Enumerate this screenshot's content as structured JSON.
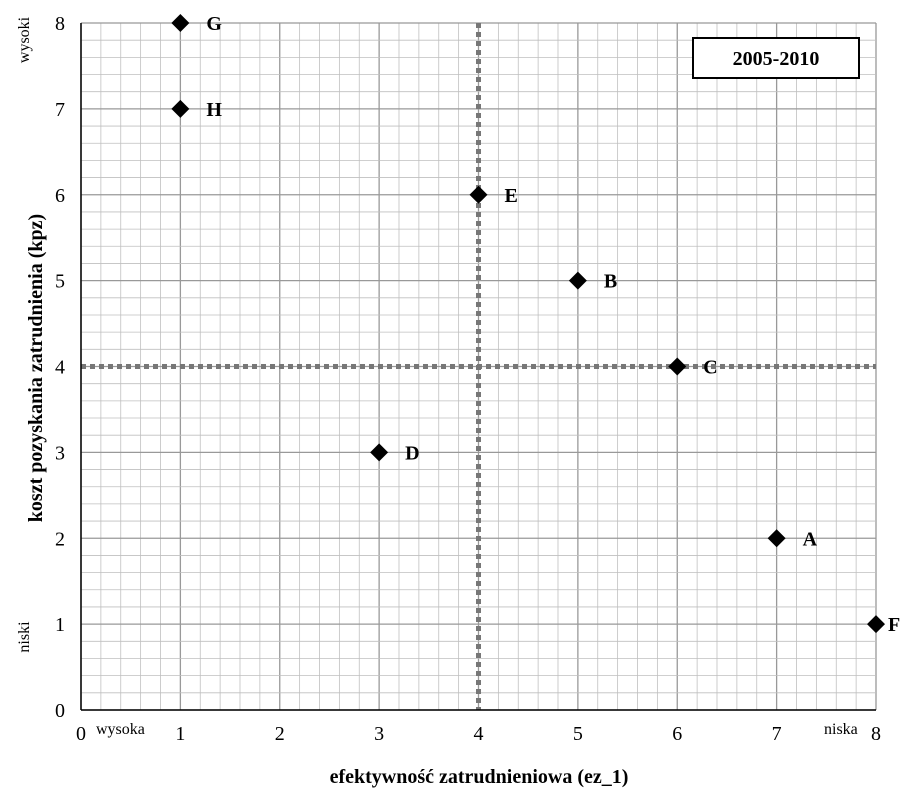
{
  "chart_data": {
    "type": "scatter",
    "period_label": "2005-2010",
    "xlabel": "efektywność zatrudnieniowa (ez_1)",
    "ylabel": "koszt pozyskania zatrudnienia (kpz)",
    "xlim": [
      0,
      8
    ],
    "ylim": [
      0,
      8
    ],
    "x_ticks": [
      0,
      1,
      2,
      3,
      4,
      5,
      6,
      7,
      8
    ],
    "y_ticks": [
      0,
      1,
      2,
      3,
      4,
      5,
      6,
      7,
      8
    ],
    "minor_per_major": 5,
    "grid": true,
    "corner_labels": {
      "x_low": "wysoka",
      "x_high": "niska",
      "y_high": "wysoki",
      "y_low": "niski"
    },
    "reference_lines": {
      "x": 4,
      "y": 4
    },
    "points": [
      {
        "label": "A",
        "x": 7,
        "y": 2
      },
      {
        "label": "B",
        "x": 5,
        "y": 5
      },
      {
        "label": "C",
        "x": 6,
        "y": 4
      },
      {
        "label": "D",
        "x": 3,
        "y": 3
      },
      {
        "label": "E",
        "x": 4,
        "y": 6
      },
      {
        "label": "F",
        "x": 8,
        "y": 1
      },
      {
        "label": "G",
        "x": 1,
        "y": 8
      },
      {
        "label": "H",
        "x": 1,
        "y": 7
      }
    ],
    "marker": "diamond",
    "colors": {
      "marker": "#000000",
      "reference": "#777777",
      "grid_major": "#999999",
      "grid_minor": "#bfbfbf"
    }
  }
}
